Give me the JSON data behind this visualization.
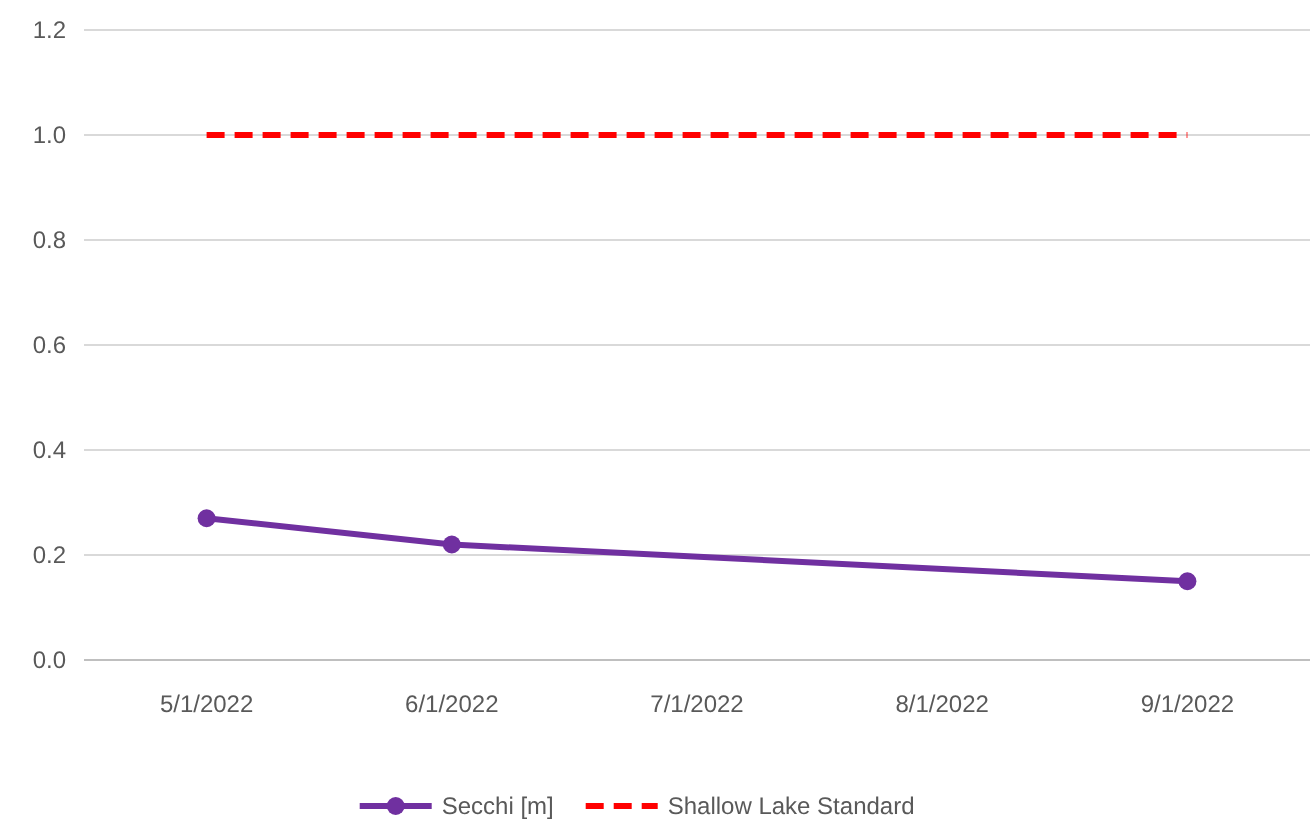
{
  "chart_data": {
    "type": "line",
    "categories": [
      "5/1/2022",
      "6/1/2022",
      "7/1/2022",
      "8/1/2022",
      "9/1/2022"
    ],
    "series": [
      {
        "name": "Secchi [m]",
        "color": "#7030a0",
        "values": [
          0.27,
          0.22,
          null,
          null,
          0.15
        ],
        "marker": "circle",
        "line_style": "solid"
      },
      {
        "name": "Shallow Lake Standard",
        "color": "#ff0000",
        "values": [
          1.0,
          1.0,
          1.0,
          1.0,
          1.0
        ],
        "marker": "none",
        "line_style": "dashed"
      }
    ],
    "ylim": [
      0,
      1.2
    ],
    "yticks": [
      {
        "value": 0,
        "label": "0.0"
      },
      {
        "value": 0.2,
        "label": "0.2"
      },
      {
        "value": 0.4,
        "label": "0.4"
      },
      {
        "value": 0.6,
        "label": "0.6"
      },
      {
        "value": 0.8,
        "label": "0.8"
      },
      {
        "value": 1.0,
        "label": "1.0"
      },
      {
        "value": 1.2,
        "label": "1.2"
      }
    ],
    "grid": "y",
    "legend": "bottom"
  }
}
